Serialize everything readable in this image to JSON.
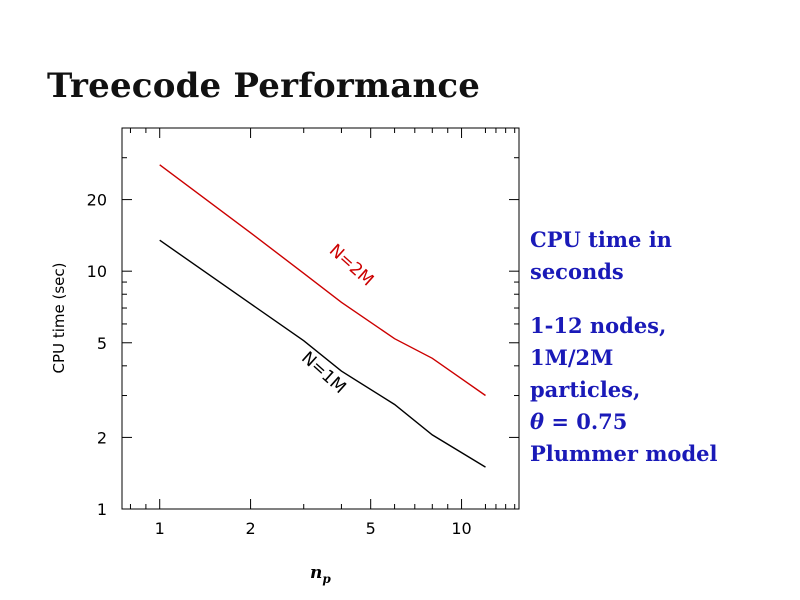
{
  "slide": {
    "title": "Treecode Performance"
  },
  "side_notes": {
    "block1": [
      "CPU time in",
      "seconds"
    ],
    "block2": [
      "1-12 nodes,",
      "1M/2M",
      "particles,"
    ],
    "theta_symbol": "θ",
    "theta_rest": " = 0.75",
    "block3": [
      "Plummer model"
    ]
  },
  "colors": {
    "series_n1": "#000000",
    "series_n2": "#cc0000",
    "side_text": "#1a1ab8"
  },
  "chart_data": {
    "type": "line",
    "title": "",
    "xlabel": "n_p",
    "xlabel_base": "n",
    "xlabel_sub": "p",
    "ylabel": "CPU time (sec)",
    "xscale": "log",
    "yscale": "log",
    "xlim": [
      0.75,
      15.5
    ],
    "ylim": [
      1,
      40
    ],
    "xticks": [
      1,
      2,
      5,
      10
    ],
    "xtick_labels": [
      "1",
      "2",
      "5",
      "10"
    ],
    "yticks": [
      1,
      2,
      5,
      10,
      20
    ],
    "ytick_labels": [
      "1",
      "2",
      "5",
      "10",
      "20"
    ],
    "series": [
      {
        "name": "N=2M",
        "color": "#cc0000",
        "x": [
          1,
          2,
          3,
          4,
          6,
          8,
          12
        ],
        "y": [
          28,
          14.5,
          9.8,
          7.4,
          5.2,
          4.3,
          3.0
        ]
      },
      {
        "name": "N=1M",
        "color": "#000000",
        "x": [
          1,
          2,
          3,
          4,
          6,
          8,
          12
        ],
        "y": [
          13.5,
          7.3,
          5.1,
          3.8,
          2.75,
          2.05,
          1.5
        ]
      }
    ],
    "annotations": [
      {
        "text": "N=2M",
        "series": "N=2M",
        "x": 4.2,
        "y": 10.2
      },
      {
        "text": "N=1M",
        "series": "N=1M",
        "x": 3.4,
        "y": 3.6
      }
    ]
  }
}
